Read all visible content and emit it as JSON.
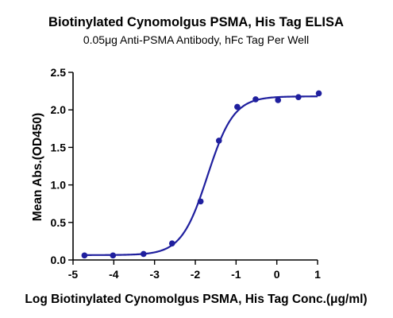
{
  "chart_data": {
    "type": "scatter",
    "title": "Biotinylated Cynomolgus PSMA, His Tag ELISA",
    "subtitle": "0.05μg Anti-PSMA Antibody, hFc Tag Per Well",
    "xlabel": "Log Biotinylated Cynomolgus PSMA, His Tag Conc.(μg/ml)",
    "ylabel": "Mean Abs.(OD450)",
    "xlim": [
      -5,
      1
    ],
    "ylim": [
      0,
      2.5
    ],
    "x_ticks": [
      "-5",
      "-4",
      "-3",
      "-2",
      "-1",
      "0",
      "1"
    ],
    "y_ticks": [
      "0.0",
      "0.5",
      "1.0",
      "1.5",
      "2.0",
      "2.5"
    ],
    "grid": false,
    "legend": "none",
    "color": "#1f1f9e",
    "series": [
      {
        "x": [
          -4.72,
          -4.02,
          -3.27,
          -2.57,
          -1.87,
          -1.42,
          -0.97,
          -0.52,
          0.03,
          0.53,
          1.03
        ],
        "y": [
          0.06,
          0.06,
          0.08,
          0.22,
          0.78,
          1.59,
          2.04,
          2.14,
          2.13,
          2.17,
          2.22
        ]
      }
    ],
    "fit_curve": {
      "model": "4PL",
      "bottom": 0.065,
      "top": 2.18,
      "logEC50": -1.7,
      "hill_slope": 1.35
    }
  }
}
